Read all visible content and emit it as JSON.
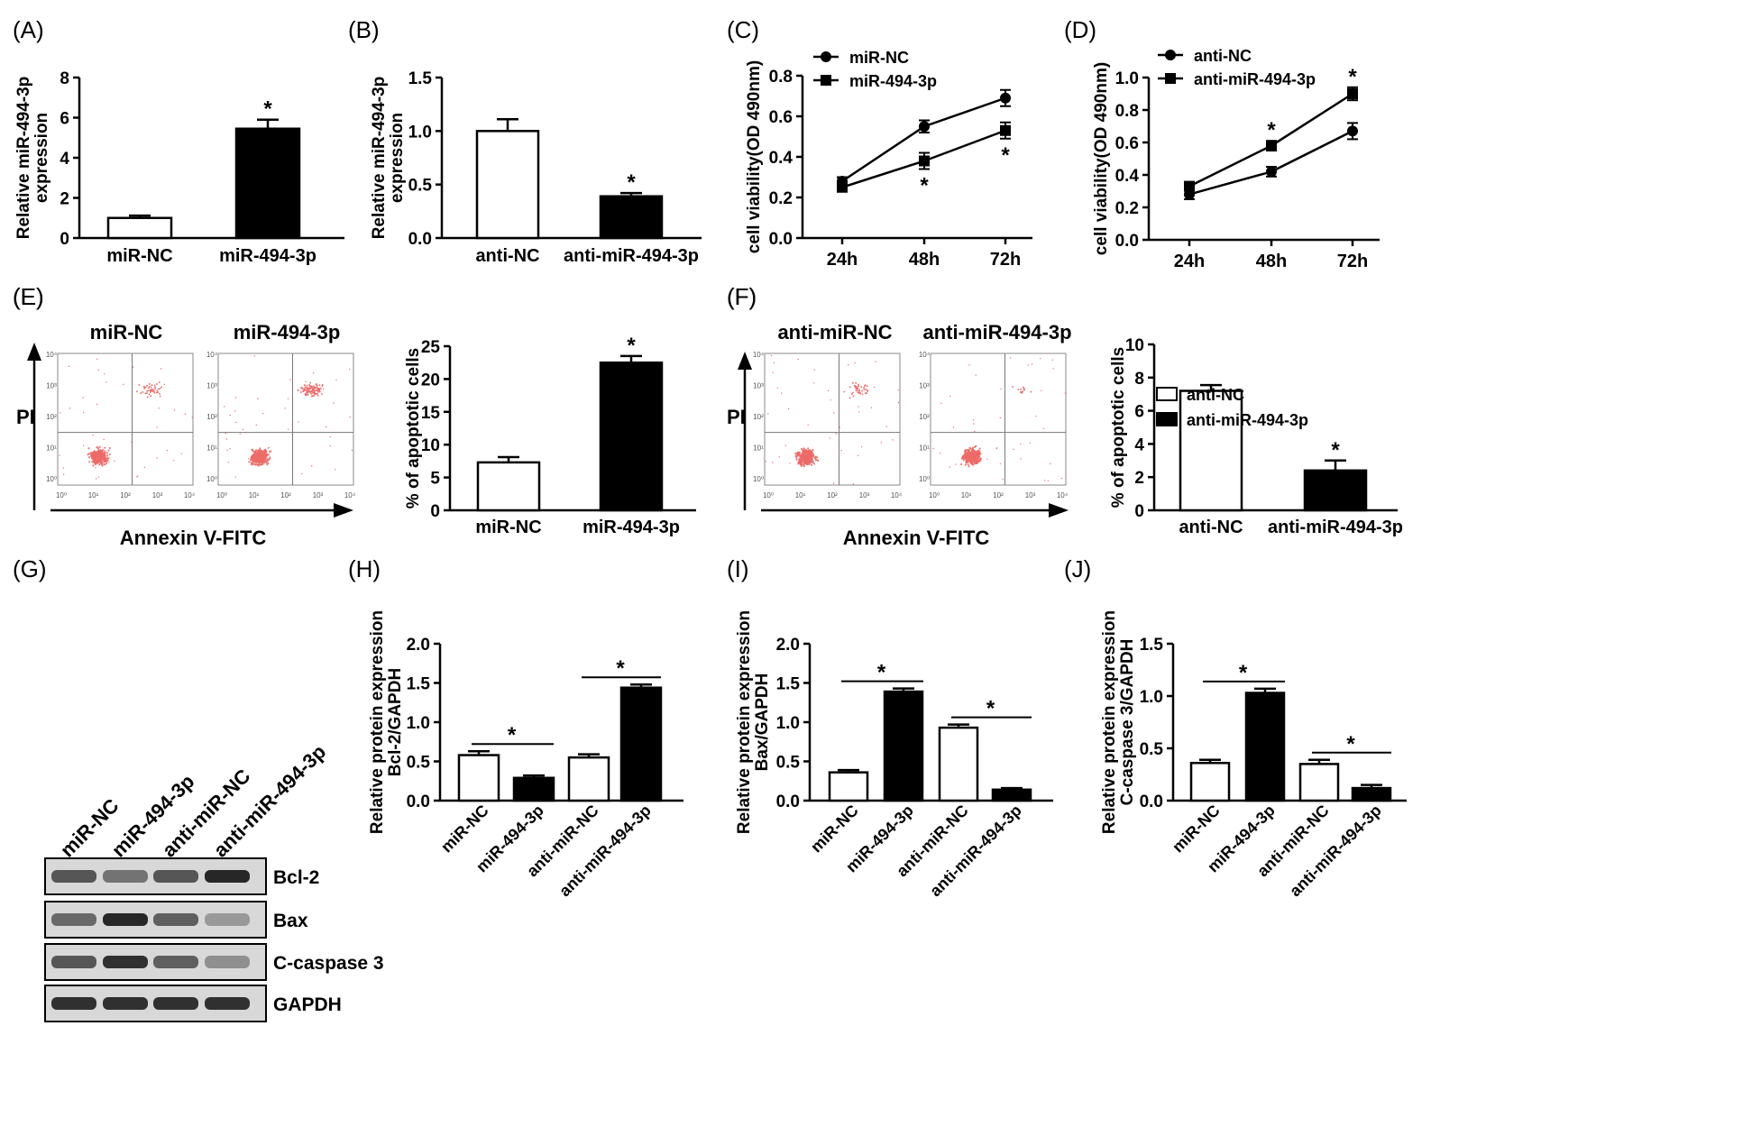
{
  "figure": {
    "ink": "#000000",
    "white": "#ffffff",
    "dot_color": "#e53935"
  },
  "chart_data": [
    {
      "panel": "(A)",
      "type": "bar",
      "categories": [
        "miR-NC",
        "miR-494-3p"
      ],
      "values": [
        1.0,
        5.45
      ],
      "errors": [
        0.12,
        0.45
      ],
      "fills": [
        "white",
        "black"
      ],
      "ylabel": [
        "Relative miR-494-3p",
        "expression"
      ],
      "ylim": [
        0,
        8
      ],
      "yticks": [
        "0",
        "2",
        "4",
        "6",
        "8"
      ],
      "sig": [
        {
          "label": "*",
          "bar": 1
        }
      ]
    },
    {
      "panel": "(B)",
      "type": "bar",
      "categories": [
        "anti-NC",
        "anti-miR-494-3p"
      ],
      "values": [
        1.0,
        0.39
      ],
      "errors": [
        0.11,
        0.03
      ],
      "fills": [
        "white",
        "black"
      ],
      "ylabel": [
        "Relative miR-494-3p",
        "expression"
      ],
      "ylim": [
        0,
        1.5
      ],
      "yticks": [
        "0.0",
        "0.5",
        "1.0",
        "1.5"
      ],
      "sig": [
        {
          "label": "*",
          "bar": 1
        }
      ]
    },
    {
      "panel": "(C)",
      "type": "line",
      "x": [
        "24h",
        "48h",
        "72h"
      ],
      "ylabel": [
        "cell viability(OD 490nm)"
      ],
      "ylim": [
        0,
        0.8
      ],
      "yticks": [
        "0.0",
        "0.2",
        "0.4",
        "0.6",
        "0.8"
      ],
      "series": [
        {
          "name": "miR-NC",
          "marker": "circle",
          "values": [
            0.28,
            0.55,
            0.69
          ],
          "errors": [
            0.02,
            0.03,
            0.04
          ]
        },
        {
          "name": "miR-494-3p",
          "marker": "square",
          "values": [
            0.25,
            0.38,
            0.53
          ],
          "errors": [
            0.02,
            0.04,
            0.04
          ]
        }
      ],
      "sig": [
        {
          "label": "*",
          "x": 1
        },
        {
          "label": "*",
          "x": 2
        }
      ],
      "legend": "top-left"
    },
    {
      "panel": "(D)",
      "type": "line",
      "x": [
        "24h",
        "48h",
        "72h"
      ],
      "ylabel": [
        "cell viability(OD 490nm)"
      ],
      "ylim": [
        0,
        1.0
      ],
      "yticks": [
        "0.0",
        "0.2",
        "0.4",
        "0.6",
        "0.8",
        "1.0"
      ],
      "series": [
        {
          "name": "anti-NC",
          "marker": "circle",
          "values": [
            0.28,
            0.42,
            0.67
          ],
          "errors": [
            0.03,
            0.03,
            0.05
          ]
        },
        {
          "name": "anti-miR-494-3p",
          "marker": "square",
          "values": [
            0.33,
            0.58,
            0.9
          ],
          "errors": [
            0.02,
            0.03,
            0.04
          ]
        }
      ],
      "sig": [
        {
          "label": "*",
          "x": 1
        },
        {
          "label": "*",
          "x": 2
        }
      ],
      "legend": "top-left"
    },
    {
      "panel": "(E)",
      "type": "bar",
      "categories": [
        "miR-NC",
        "miR-494-3p"
      ],
      "values": [
        7.3,
        22.5
      ],
      "errors": [
        0.8,
        1.0
      ],
      "fills": [
        "white",
        "black"
      ],
      "ylabel": [
        "% of apoptotic cells"
      ],
      "ylim": [
        0,
        25
      ],
      "yticks": [
        "0",
        "5",
        "10",
        "15",
        "20",
        "25"
      ],
      "sig": [
        {
          "label": "*",
          "bar": 1
        }
      ]
    },
    {
      "panel": "(F)",
      "type": "bar",
      "categories": [
        "anti-NC",
        "anti-miR-494-3p"
      ],
      "values": [
        7.2,
        2.4
      ],
      "errors": [
        0.35,
        0.6
      ],
      "fills": [
        "white",
        "black"
      ],
      "ylabel": [
        "% of apoptotic cells"
      ],
      "ylim": [
        0,
        10
      ],
      "yticks": [
        "0",
        "2",
        "4",
        "6",
        "8",
        "10"
      ],
      "sig": [
        {
          "label": "*",
          "bar": 1
        }
      ],
      "legend_items": [
        "anti-NC",
        "anti-miR-494-3p"
      ]
    },
    {
      "panel": "(H)",
      "type": "bar",
      "categories": [
        "miR-NC",
        "miR-494-3p",
        "anti-miR-NC",
        "anti-miR-494-3p"
      ],
      "values": [
        0.58,
        0.29,
        0.55,
        1.44
      ],
      "errors": [
        0.05,
        0.03,
        0.04,
        0.04
      ],
      "fills": [
        "white",
        "black",
        "white",
        "black"
      ],
      "ylabel": [
        "Relative protein expression",
        "Bcl-2/GAPDH"
      ],
      "ylim": [
        0,
        2.0
      ],
      "yticks": [
        "0.0",
        "0.5",
        "1.0",
        "1.5",
        "2.0"
      ],
      "sig": [
        {
          "label": "*",
          "from": 0,
          "to": 1
        },
        {
          "label": "*",
          "from": 2,
          "to": 3
        }
      ]
    },
    {
      "panel": "(I)",
      "type": "bar",
      "categories": [
        "miR-NC",
        "miR-494-3p",
        "anti-miR-NC",
        "anti-miR-494-3p"
      ],
      "values": [
        0.36,
        1.39,
        0.93,
        0.14
      ],
      "errors": [
        0.03,
        0.04,
        0.04,
        0.02
      ],
      "fills": [
        "white",
        "black",
        "white",
        "black"
      ],
      "ylabel": [
        "Relative protein expression",
        "Bax/GAPDH"
      ],
      "ylim": [
        0,
        2.0
      ],
      "yticks": [
        "0.0",
        "0.5",
        "1.0",
        "1.5",
        "2.0"
      ],
      "sig": [
        {
          "label": "*",
          "from": 0,
          "to": 1
        },
        {
          "label": "*",
          "from": 2,
          "to": 3
        }
      ]
    },
    {
      "panel": "(J)",
      "type": "bar",
      "categories": [
        "miR-NC",
        "miR-494-3p",
        "anti-miR-NC",
        "anti-miR-494-3p"
      ],
      "values": [
        0.36,
        1.03,
        0.35,
        0.12
      ],
      "errors": [
        0.03,
        0.04,
        0.04,
        0.03
      ],
      "fills": [
        "white",
        "black",
        "white",
        "black"
      ],
      "ylabel": [
        "Relative protein expression",
        "C-caspase 3/GAPDH"
      ],
      "ylim": [
        0,
        1.5
      ],
      "yticks": [
        "0.0",
        "0.5",
        "1.0",
        "1.5"
      ],
      "sig": [
        {
          "label": "*",
          "from": 0,
          "to": 1
        },
        {
          "label": "*",
          "from": 2,
          "to": 3
        }
      ]
    }
  ],
  "flow_panels": [
    {
      "panel": "(E)",
      "groups": [
        "miR-NC",
        "miR-494-3p"
      ],
      "y_label": "PI",
      "x_label": "Annexin V-FITC",
      "tick_labels": [
        "10⁰",
        "10¹",
        "10²",
        "10³",
        "10⁴"
      ],
      "upper_right_density": [
        "medium",
        "high"
      ]
    },
    {
      "panel": "(F)",
      "groups": [
        "anti-miR-NC",
        "anti-miR-494-3p"
      ],
      "y_label": "PI",
      "x_label": "Annexin V-FITC",
      "tick_labels": [
        "10⁰",
        "10¹",
        "10²",
        "10³",
        "10⁴"
      ],
      "upper_right_density": [
        "medium",
        "low"
      ]
    }
  ],
  "western_blot": {
    "panel": "(G)",
    "lanes": [
      "miR-NC",
      "miR-494-3p",
      "anti-miR-NC",
      "anti-miR-494-3p"
    ],
    "proteins": [
      "Bcl-2",
      "Bax",
      "C-caspase 3",
      "GAPDH"
    ],
    "band_intensity": [
      [
        0.6,
        0.45,
        0.6,
        0.85
      ],
      [
        0.5,
        0.85,
        0.55,
        0.25
      ],
      [
        0.6,
        0.8,
        0.55,
        0.3
      ],
      [
        0.8,
        0.8,
        0.8,
        0.8
      ]
    ]
  }
}
